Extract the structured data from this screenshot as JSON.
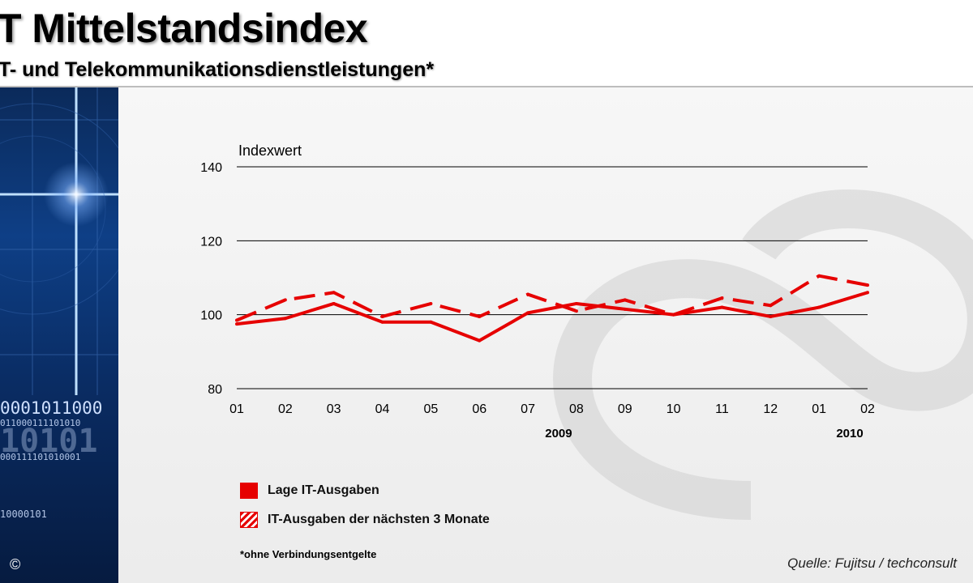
{
  "header": {
    "title": "T Mittelstandsindex",
    "subtitle": "T- und Telekommunikationsdienstleistungen*"
  },
  "sidebar": {
    "binary_lines": [
      "0001011000",
      "011000111101010",
      "10101",
      "000111101010001",
      "10000101"
    ],
    "copyright": "©"
  },
  "legend": {
    "items": [
      {
        "label": "Lage IT-Ausgaben",
        "style": "solid"
      },
      {
        "label": "IT-Ausgaben der nächsten 3 Monate",
        "style": "dashed"
      }
    ]
  },
  "footnote": "*ohne Verbindungsentgelte",
  "source": "Quelle: Fujitsu / techconsult",
  "colors": {
    "series": "#e60000",
    "grid": "#000000",
    "watermark": "#cfcfcf"
  },
  "chart_data": {
    "type": "line",
    "ylabel": "Indexwert",
    "ylim": [
      80,
      140
    ],
    "yticks": [
      80,
      100,
      120,
      140
    ],
    "categories": [
      "01",
      "02",
      "03",
      "04",
      "05",
      "06",
      "07",
      "08",
      "09",
      "10",
      "11",
      "12",
      "01",
      "02"
    ],
    "year_labels": [
      {
        "label": "2009",
        "category_index": 7
      },
      {
        "label": "2010",
        "category_index": 13
      }
    ],
    "grid": true,
    "series": [
      {
        "name": "Lage IT-Ausgaben",
        "style": "solid",
        "values": [
          97.5,
          99,
          103,
          98,
          98,
          93,
          100.5,
          103,
          101.5,
          100,
          102,
          99.5,
          102,
          106
        ]
      },
      {
        "name": "IT-Ausgaben der nächsten 3 Monate",
        "style": "dashed",
        "values": [
          98.5,
          104,
          106,
          99.5,
          103,
          99.5,
          105.5,
          101,
          104,
          100,
          104.5,
          102.5,
          110.5,
          108
        ]
      }
    ]
  }
}
